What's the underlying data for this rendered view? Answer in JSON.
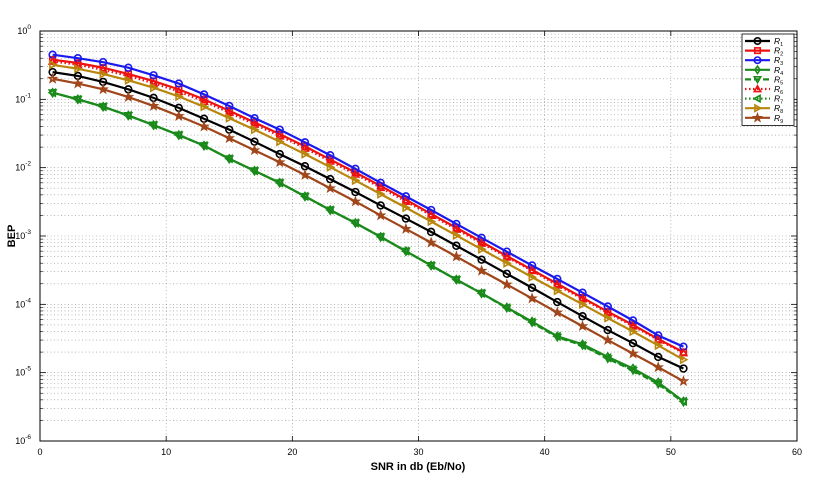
{
  "chart_data": {
    "type": "line",
    "title": "",
    "xlabel": "SNR in db (Eb/No)",
    "ylabel": "BEP",
    "xlim": [
      0,
      60
    ],
    "ylim": [
      1e-06,
      1
    ],
    "yscale": "log",
    "grid": true,
    "legend_position": "top-right",
    "x_ticks": [
      0,
      10,
      20,
      30,
      40,
      50,
      60
    ],
    "y_ticks": [
      {
        "value": 1e-06,
        "base": "10",
        "exp": "-6"
      },
      {
        "value": 1e-05,
        "base": "10",
        "exp": "-5"
      },
      {
        "value": 0.0001,
        "base": "10",
        "exp": "-4"
      },
      {
        "value": 0.001,
        "base": "10",
        "exp": "-3"
      },
      {
        "value": 0.01,
        "base": "10",
        "exp": "-2"
      },
      {
        "value": 0.1,
        "base": "10",
        "exp": "-1"
      },
      {
        "value": 1,
        "base": "10",
        "exp": "0"
      }
    ],
    "x": [
      1,
      3,
      5,
      7,
      9,
      11,
      13,
      15,
      17,
      19,
      21,
      23,
      25,
      27,
      29,
      31,
      33,
      35,
      37,
      39,
      41,
      43,
      45,
      47,
      49,
      51
    ],
    "series": [
      {
        "name": "R1",
        "sub": "1",
        "color": "#000000",
        "marker": "circle",
        "dash": "solid",
        "values": [
          0.25,
          0.22,
          0.18,
          0.14,
          0.105,
          0.075,
          0.052,
          0.036,
          0.024,
          0.0158,
          0.0105,
          0.0068,
          0.0044,
          0.0028,
          0.0018,
          0.00115,
          0.00072,
          0.00045,
          0.00028,
          0.000175,
          0.000108,
          6.7e-05,
          4.2e-05,
          2.7e-05,
          1.7e-05,
          1.15e-05
        ]
      },
      {
        "name": "R2",
        "sub": "2",
        "color": "#ee1111",
        "marker": "square",
        "dash": "solid",
        "values": [
          0.38,
          0.34,
          0.29,
          0.235,
          0.185,
          0.14,
          0.1,
          0.068,
          0.046,
          0.031,
          0.0205,
          0.0132,
          0.0085,
          0.0054,
          0.0034,
          0.0021,
          0.00132,
          0.00082,
          0.00051,
          0.00032,
          0.0002,
          0.000125,
          7.8e-05,
          5e-05,
          3.1e-05,
          2e-05
        ]
      },
      {
        "name": "R3",
        "sub": "3",
        "color": "#1a1aee",
        "marker": "circle",
        "dash": "solid",
        "values": [
          0.45,
          0.4,
          0.35,
          0.29,
          0.225,
          0.17,
          0.118,
          0.08,
          0.053,
          0.036,
          0.0235,
          0.0152,
          0.0096,
          0.006,
          0.0038,
          0.0024,
          0.0015,
          0.00094,
          0.00059,
          0.00037,
          0.000235,
          0.000148,
          9.3e-05,
          5.8e-05,
          3.5e-05,
          2.4e-05
        ]
      },
      {
        "name": "R4",
        "sub": "4",
        "color": "#1a8a1a",
        "marker": "diamond",
        "dash": "solid",
        "values": [
          0.125,
          0.1,
          0.078,
          0.058,
          0.042,
          0.03,
          0.021,
          0.0135,
          0.009,
          0.006,
          0.0038,
          0.0024,
          0.00155,
          0.00097,
          0.0006,
          0.00037,
          0.00023,
          0.000145,
          9e-05,
          5.6e-05,
          3.4e-05,
          2.6e-05,
          1.7e-05,
          1.15e-05,
          7.2e-06,
          3.8e-06
        ]
      },
      {
        "name": "R5",
        "sub": "5",
        "color": "#1a8a1a",
        "marker": "triangle-down",
        "dash": "dashed",
        "values": [
          0.125,
          0.1,
          0.078,
          0.058,
          0.042,
          0.03,
          0.021,
          0.0135,
          0.009,
          0.006,
          0.0038,
          0.0024,
          0.00155,
          0.00097,
          0.0006,
          0.00037,
          0.00023,
          0.000145,
          8.8e-05,
          5.4e-05,
          3.3e-05,
          2.5e-05,
          1.6e-05,
          1.08e-05,
          6.8e-06,
          3.7e-06
        ]
      },
      {
        "name": "R6",
        "sub": "6",
        "color": "#ee1111",
        "marker": "triangle-up",
        "dash": "dotted",
        "values": [
          0.36,
          0.32,
          0.27,
          0.22,
          0.172,
          0.13,
          0.093,
          0.064,
          0.043,
          0.029,
          0.0192,
          0.0124,
          0.008,
          0.0051,
          0.0032,
          0.002,
          0.00125,
          0.00078,
          0.00049,
          0.00031,
          0.00019,
          0.00012,
          7.5e-05,
          4.8e-05,
          3e-05,
          1.95e-05
        ]
      },
      {
        "name": "R7",
        "sub": "7",
        "color": "#1a8a1a",
        "marker": "triangle-left",
        "dash": "dotted",
        "values": [
          0.125,
          0.1,
          0.078,
          0.058,
          0.042,
          0.03,
          0.021,
          0.0135,
          0.009,
          0.006,
          0.0038,
          0.0024,
          0.00155,
          0.00097,
          0.0006,
          0.00037,
          0.00023,
          0.000145,
          8.9e-05,
          5.5e-05,
          3.4e-05,
          2.5e-05,
          1.65e-05,
          1.1e-05,
          7e-06,
          3.8e-06
        ]
      },
      {
        "name": "R8",
        "sub": "8",
        "color": "#b8860b",
        "marker": "triangle-right",
        "dash": "solid",
        "values": [
          0.32,
          0.28,
          0.235,
          0.19,
          0.148,
          0.11,
          0.078,
          0.053,
          0.036,
          0.024,
          0.0158,
          0.0102,
          0.0065,
          0.0041,
          0.0026,
          0.00163,
          0.00102,
          0.00064,
          0.0004,
          0.00025,
          0.000158,
          0.0001,
          6.3e-05,
          4e-05,
          2.5e-05,
          1.55e-05
        ]
      },
      {
        "name": "R9",
        "sub": "9",
        "color": "#a0461a",
        "marker": "star",
        "dash": "solid",
        "values": [
          0.2,
          0.17,
          0.14,
          0.108,
          0.08,
          0.057,
          0.04,
          0.027,
          0.018,
          0.012,
          0.0078,
          0.005,
          0.0032,
          0.002,
          0.00127,
          0.0008,
          0.0005,
          0.00031,
          0.000195,
          0.000122,
          7.6e-05,
          4.8e-05,
          3e-05,
          1.9e-05,
          1.2e-05,
          7.5e-06
        ]
      }
    ]
  }
}
